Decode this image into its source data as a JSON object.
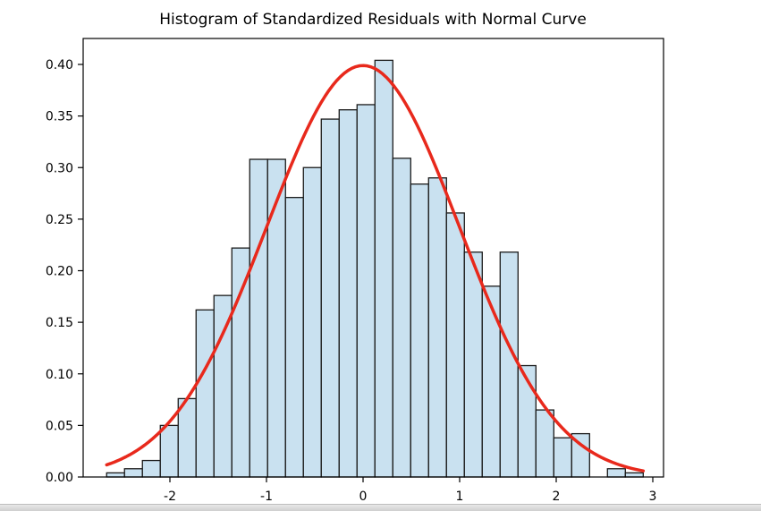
{
  "title": "Histogram of Standardized Residuals with Normal Curve",
  "chart_data": {
    "type": "bar",
    "subtype": "histogram-with-normal-curve",
    "title": "Histogram of Standardized Residuals with Normal Curve",
    "xlabel": "",
    "ylabel": "",
    "grid": false,
    "legend": "none",
    "xlim": [
      -2.93,
      3.12
    ],
    "ylim": [
      0,
      0.425
    ],
    "x_ticks": [
      -2,
      -1,
      0,
      1,
      2,
      3
    ],
    "x_tick_labels": [
      "-2",
      "-1",
      "0",
      "1",
      "2",
      "3"
    ],
    "y_ticks": [
      0.0,
      0.05,
      0.1,
      0.15,
      0.2,
      0.25,
      0.3,
      0.35,
      0.4
    ],
    "y_tick_labels": [
      "0.00",
      "0.05",
      "0.10",
      "0.15",
      "0.20",
      "0.25",
      "0.30",
      "0.35",
      "0.40"
    ],
    "histogram": {
      "bin_start": -2.655,
      "bin_width": 0.1852,
      "n_bins": 30,
      "densities": [
        0.004,
        0.008,
        0.016,
        0.05,
        0.076,
        0.162,
        0.176,
        0.222,
        0.308,
        0.308,
        0.271,
        0.3,
        0.347,
        0.356,
        0.361,
        0.404,
        0.309,
        0.284,
        0.29,
        0.256,
        0.218,
        0.185,
        0.218,
        0.108,
        0.065,
        0.038,
        0.042,
        0.0,
        0.008,
        0.004
      ]
    },
    "normal_curve": {
      "distribution": "standard-normal",
      "mu": 0,
      "sigma": 1,
      "peak_density": 0.3989,
      "x_range": [
        -2.655,
        2.901
      ]
    },
    "colors": {
      "bar_fill": "#c9e1f0",
      "bar_edge": "#1a1a1a",
      "curve": "#e8291c",
      "axis": "#000000",
      "background": "#ffffff"
    }
  }
}
